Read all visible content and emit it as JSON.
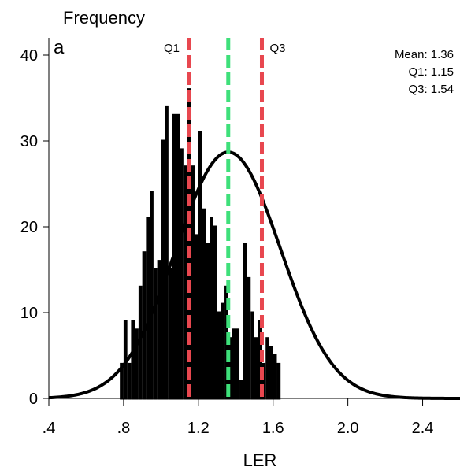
{
  "chart_data": {
    "type": "bar",
    "ylabel": "Frequency",
    "xlabel": "LER",
    "panel_label": "a",
    "xlim": [
      0.4,
      2.6
    ],
    "ylim": [
      0,
      40
    ],
    "x_ticks": [
      0.4,
      0.8,
      1.2,
      1.6,
      2.0,
      2.4
    ],
    "x_tick_labels": [
      ".4",
      ".8",
      "1.2",
      "1.6",
      "2.0",
      "2.4"
    ],
    "y_ticks": [
      0,
      10,
      20,
      30,
      40
    ],
    "y_tick_labels": [
      "0",
      "10",
      "20",
      "30",
      "40"
    ],
    "bin_width": 0.02,
    "bins_start": 0.78,
    "counts": [
      4,
      9,
      4,
      9,
      8,
      13,
      17,
      21,
      24,
      15,
      16,
      30,
      34,
      15,
      33,
      33,
      29,
      27,
      36,
      27,
      19,
      31,
      22,
      18,
      21,
      20,
      10,
      11,
      13,
      7,
      8,
      8,
      2,
      18,
      14,
      10,
      7,
      9,
      4,
      7,
      6,
      5,
      4
    ],
    "normal_curve": {
      "mean": 1.36,
      "sd": 0.28,
      "peak": 28.7
    },
    "vlines": [
      {
        "name": "Q1",
        "value": 1.15,
        "color": "#e8474f",
        "label": "Q1"
      },
      {
        "name": "Mean",
        "value": 1.36,
        "color": "#3ee07a",
        "label": ""
      },
      {
        "name": "Q3",
        "value": 1.54,
        "color": "#e8474f",
        "label": "Q3"
      }
    ],
    "stats": {
      "mean": "Mean: 1.36",
      "q1": "Q1: 1.15",
      "q3": "Q3: 1.54"
    },
    "grid": false,
    "legend": "none"
  }
}
